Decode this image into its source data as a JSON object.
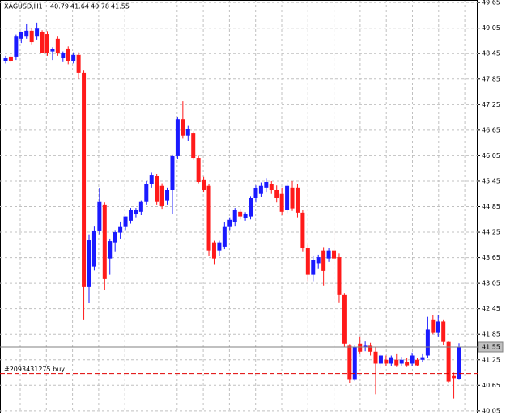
{
  "chart_data": {
    "type": "candlestick",
    "title": "XAGUSD,H1",
    "open": [
      48.28,
      48.38,
      48.38,
      48.8,
      48.85,
      48.99,
      48.85,
      48.95,
      48.91,
      48.5,
      48.8,
      48.34,
      48.57,
      48.28,
      48.42,
      48.0,
      42.96,
      43.44,
      44.29,
      44.9,
      43.63,
      44.01,
      44.24,
      44.39,
      44.52,
      44.67,
      44.73,
      44.96,
      45.38,
      45.57,
      45.34,
      45.0,
      45.24,
      46.04,
      46.91,
      46.52,
      46.57,
      46.0,
      45.49,
      45.34,
      44.01,
      43.82,
      43.91,
      44.39,
      44.48,
      44.73,
      44.58,
      44.62,
      45.05,
      45.15,
      45.3,
      45.39,
      45.24,
      45.15,
      44.77,
      45.3,
      45.3,
      44.71,
      43.87,
      43.25,
      43.52,
      43.82,
      43.63,
      43.82,
      43.66,
      42.77,
      41.58,
      40.78,
      41.63,
      41.54,
      41.58,
      41.44,
      41.16,
      41.25,
      41.16,
      41.25,
      41.16,
      41.2,
      41.16,
      41.25,
      41.25,
      41.35,
      42.2,
      41.88,
      42.15,
      41.67,
      40.87,
      40.79
    ],
    "high": [
      48.4,
      48.42,
      48.9,
      48.97,
      49.14,
      49.05,
      49.18,
      49.0,
      48.98,
      48.6,
      48.85,
      48.5,
      48.62,
      48.48,
      48.48,
      48.05,
      44.2,
      44.4,
      45.28,
      44.95,
      44.1,
      44.3,
      44.5,
      44.62,
      44.82,
      44.82,
      45.0,
      45.45,
      45.65,
      45.62,
      45.4,
      45.3,
      46.08,
      46.95,
      47.33,
      46.75,
      46.62,
      46.05,
      45.55,
      45.38,
      44.05,
      44.05,
      44.48,
      44.6,
      44.82,
      44.8,
      44.72,
      45.1,
      45.35,
      45.42,
      45.52,
      45.45,
      45.35,
      45.3,
      45.4,
      45.45,
      45.38,
      44.78,
      43.95,
      43.7,
      43.72,
      43.9,
      43.88,
      44.26,
      43.75,
      42.82,
      41.62,
      41.6,
      41.8,
      41.68,
      41.65,
      41.55,
      41.4,
      41.35,
      41.35,
      41.4,
      41.32,
      41.3,
      41.42,
      41.3,
      41.4,
      42.26,
      42.3,
      42.3,
      42.2,
      41.7,
      40.95,
      41.64
    ],
    "low": [
      48.22,
      48.24,
      48.3,
      48.7,
      48.8,
      48.65,
      48.78,
      48.5,
      48.4,
      48.3,
      48.4,
      48.25,
      48.2,
      48.22,
      47.85,
      42.2,
      42.58,
      43.35,
      44.2,
      42.9,
      43.25,
      43.8,
      44.1,
      44.3,
      44.45,
      44.6,
      44.65,
      44.9,
      45.3,
      44.9,
      44.8,
      44.9,
      44.67,
      45.98,
      46.45,
      46.4,
      45.95,
      45.4,
      45.2,
      43.7,
      43.5,
      43.7,
      43.85,
      44.3,
      44.4,
      44.55,
      44.52,
      44.55,
      44.95,
      45.08,
      45.2,
      45.15,
      44.95,
      44.65,
      44.7,
      44.75,
      44.6,
      43.8,
      43.1,
      43.1,
      43.4,
      43.0,
      43.55,
      43.55,
      42.6,
      41.55,
      40.7,
      40.75,
      41.4,
      41.45,
      41.35,
      40.44,
      41.05,
      41.1,
      41.1,
      41.08,
      41.1,
      41.08,
      41.1,
      41.1,
      41.2,
      41.3,
      41.85,
      41.8,
      41.6,
      40.7,
      40.34,
      40.78
    ],
    "close": [
      48.34,
      48.28,
      48.85,
      48.95,
      48.99,
      48.72,
      49.04,
      48.47,
      48.47,
      48.55,
      48.47,
      48.47,
      48.28,
      48.42,
      48.0,
      42.96,
      44.06,
      44.29,
      44.96,
      43.15,
      44.04,
      44.25,
      44.39,
      44.62,
      44.77,
      44.77,
      44.96,
      45.38,
      45.6,
      44.96,
      44.86,
      45.24,
      46.04,
      46.91,
      46.52,
      46.67,
      46.0,
      45.43,
      45.24,
      43.82,
      43.63,
      44.01,
      44.39,
      44.54,
      44.77,
      44.62,
      44.67,
      45.05,
      45.28,
      45.34,
      45.43,
      45.24,
      45.05,
      44.73,
      45.34,
      44.81,
      44.71,
      43.87,
      43.25,
      43.59,
      43.66,
      43.34,
      43.82,
      43.63,
      42.77,
      41.63,
      40.78,
      41.54,
      41.44,
      41.58,
      41.44,
      41.16,
      41.35,
      41.16,
      41.31,
      41.12,
      41.25,
      41.12,
      41.35,
      41.12,
      41.31,
      41.96,
      41.88,
      42.15,
      41.67,
      40.74,
      40.82,
      41.55
    ],
    "up_color": "#1a1aff",
    "down_color": "#ff1a1a",
    "ylim": [
      39.99,
      49.71
    ],
    "yticks": [
      49.65,
      49.05,
      48.45,
      47.85,
      47.25,
      46.65,
      46.05,
      45.45,
      44.85,
      44.25,
      43.65,
      43.05,
      42.45,
      41.85,
      41.25,
      40.65,
      40.05
    ],
    "grid": true,
    "order": {
      "label": "#2093431275 buy",
      "price": 40.93
    }
  }
}
